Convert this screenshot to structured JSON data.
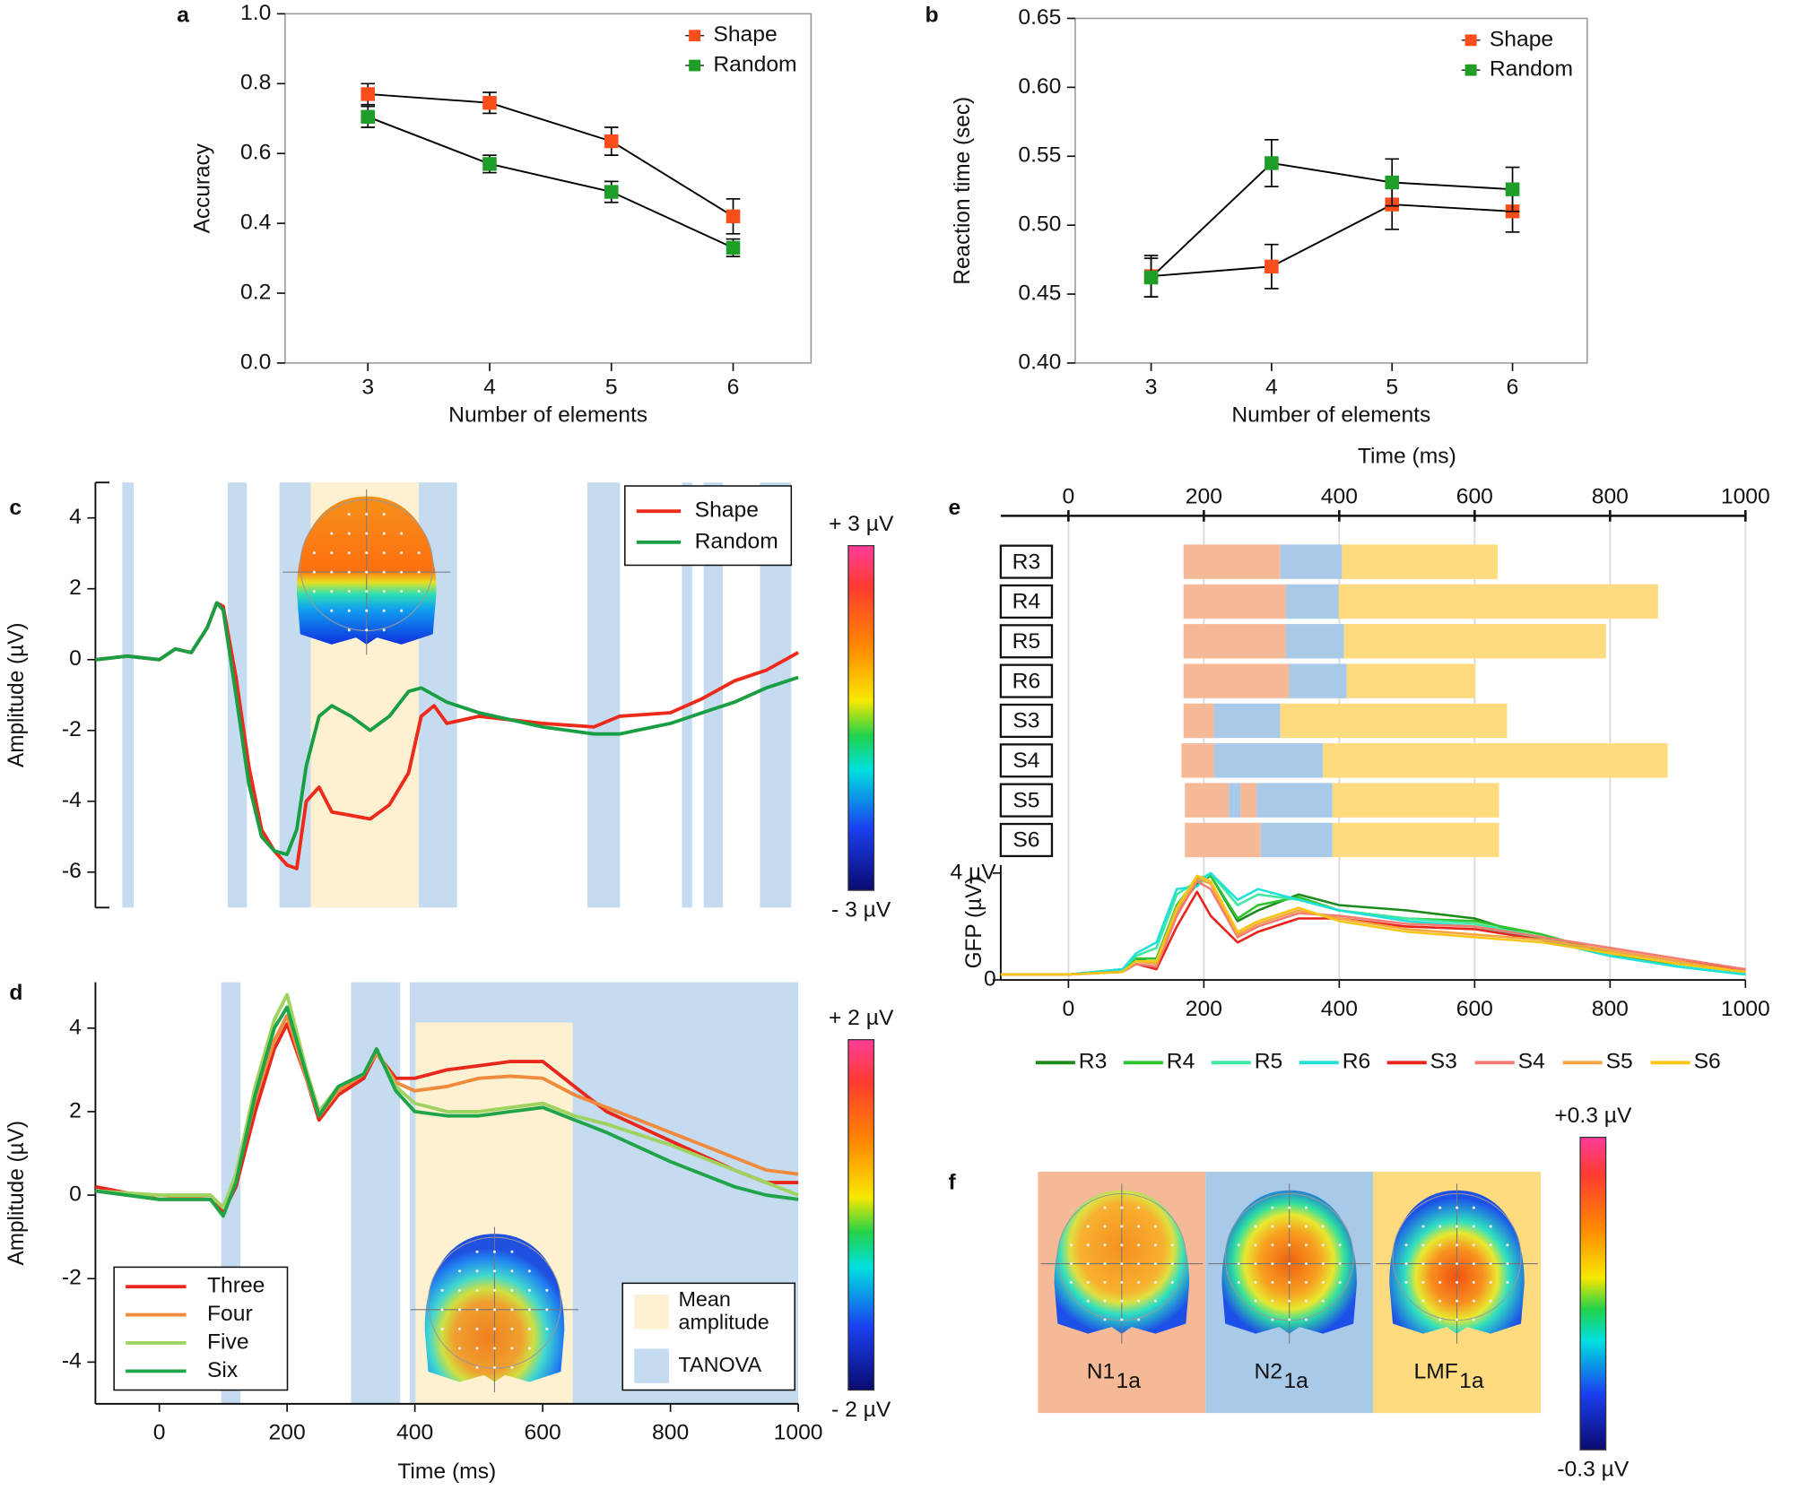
{
  "chart_data": [
    {
      "panel": "a",
      "type": "line",
      "frame": true,
      "markers": true,
      "legend": "upper right",
      "line_color": "#000000",
      "x_label": "Number of elements",
      "y_label": "Accuracy",
      "x": [
        3,
        4,
        5,
        6
      ],
      "xlim": [
        2.32,
        6.64
      ],
      "xticks": [
        3,
        4,
        5,
        6
      ],
      "ylim": [
        0,
        1
      ],
      "yticks": [
        {
          "value": 0,
          "label": "0.0"
        },
        0.2,
        0.4,
        0.6,
        0.8,
        {
          "value": 1,
          "label": "1.0"
        }
      ],
      "series": [
        {
          "name": "Shape",
          "color": "#f94d1c",
          "values": [
            0.77,
            0.745,
            0.635,
            0.42
          ],
          "errors": [
            0.03,
            0.03,
            0.04,
            0.05
          ]
        },
        {
          "name": "Random",
          "color": "#1e9e28",
          "values": [
            0.705,
            0.57,
            0.49,
            0.33
          ],
          "errors": [
            0.03,
            0.025,
            0.03,
            0.025
          ]
        }
      ]
    },
    {
      "panel": "b",
      "type": "line",
      "frame": true,
      "markers": true,
      "legend": "upper right",
      "line_color": "#000000",
      "x_label": "Number of elements",
      "y_label": "Reaction time (sec)",
      "x": [
        3,
        4,
        5,
        6
      ],
      "xlim": [
        2.37,
        6.62
      ],
      "xticks": [
        3,
        4,
        5,
        6
      ],
      "ylim": [
        0.4,
        0.65
      ],
      "yticks": [
        {
          "value": 0.4,
          "label": "0.40"
        },
        0.45,
        {
          "value": 0.5,
          "label": "0.50"
        },
        0.55,
        {
          "value": 0.6,
          "label": "0.60"
        },
        0.65
      ],
      "series": [
        {
          "name": "Shape",
          "color": "#f94d1c",
          "values": [
            0.463,
            0.47,
            0.515,
            0.51
          ],
          "errors": [
            0.015,
            0.016,
            0.018,
            0.015
          ]
        },
        {
          "name": "Random",
          "color": "#1e9e28",
          "values": [
            0.462,
            0.545,
            0.531,
            0.526
          ],
          "errors": [
            0.014,
            0.017,
            0.017,
            0.016
          ]
        }
      ]
    },
    {
      "panel": "c",
      "type": "line",
      "legend": "upper right",
      "y_label": "Amplitude (µV)",
      "xlim": [
        -100,
        1000
      ],
      "ylim": [
        -7,
        5
      ],
      "yticks": [
        -6,
        -4,
        -2,
        0,
        2,
        4
      ],
      "tanova_color": "#c5dcf0",
      "mean_color": "#fdf1d2",
      "tanova": [
        [
          -58,
          -40
        ],
        [
          107,
          137
        ],
        [
          188,
          466
        ],
        [
          670,
          721
        ],
        [
          818,
          834
        ],
        [
          852,
          882
        ],
        [
          940,
          989
        ]
      ],
      "mean_amplitude": [
        237,
        406
      ],
      "colorbar": [
        "+ 3 µV",
        "- 3 µV"
      ],
      "x": [
        -100,
        -50,
        0,
        25,
        50,
        75,
        90,
        100,
        120,
        140,
        160,
        180,
        200,
        215,
        230,
        250,
        270,
        300,
        330,
        360,
        390,
        410,
        430,
        450,
        500,
        600,
        680,
        720,
        800,
        850,
        900,
        950,
        1000
      ],
      "series": [
        {
          "name": "Shape",
          "color": "#ee2a1a",
          "values": [
            0,
            0.1,
            0,
            0.3,
            0.2,
            0.9,
            1.6,
            1.5,
            -0.5,
            -3,
            -4.8,
            -5.4,
            -5.8,
            -5.9,
            -4,
            -3.6,
            -4.3,
            -4.4,
            -4.5,
            -4.1,
            -3.2,
            -1.6,
            -1.3,
            -1.8,
            -1.6,
            -1.8,
            -1.9,
            -1.6,
            -1.5,
            -1.1,
            -0.6,
            -0.3,
            0.2
          ]
        },
        {
          "name": "Random",
          "color": "#1a9e44",
          "values": [
            0,
            0.1,
            0,
            0.3,
            0.2,
            0.9,
            1.6,
            1.4,
            -1,
            -3.5,
            -5,
            -5.4,
            -5.5,
            -4.8,
            -3,
            -1.6,
            -1.3,
            -1.6,
            -2.0,
            -1.6,
            -0.9,
            -0.8,
            -1.0,
            -1.2,
            -1.5,
            -1.9,
            -2.1,
            -2.1,
            -1.8,
            -1.5,
            -1.2,
            -0.8,
            -0.5
          ]
        }
      ]
    },
    {
      "panel": "d",
      "type": "line",
      "legend": "lower left",
      "y_label": "Amplitude (µV)",
      "x_label": "Time (ms)",
      "xlim": [
        -100,
        1000
      ],
      "xticks": [
        0,
        200,
        400,
        600,
        800,
        1000
      ],
      "ylim": [
        -5,
        5.1
      ],
      "yticks": [
        -4,
        -2,
        0,
        2,
        4
      ],
      "tanova_color": "#c5dcf0",
      "mean_color": "#fdf1d2",
      "tanova": [
        [
          97,
          127
        ],
        [
          300,
          377
        ],
        [
          392,
          1000
        ]
      ],
      "mean_amplitude": [
        401,
        647
      ],
      "shading_legend": [
        "Mean amplitude",
        "TANOVA"
      ],
      "colorbar": [
        "+ 2 µV",
        "- 2 µV"
      ],
      "x": [
        -100,
        0,
        80,
        100,
        120,
        150,
        180,
        200,
        230,
        250,
        280,
        320,
        340,
        370,
        400,
        450,
        500,
        550,
        600,
        650,
        700,
        800,
        900,
        950,
        1000
      ],
      "series": [
        {
          "name": "Three",
          "color": "#e8281c",
          "values": [
            0.2,
            -0.1,
            -0.1,
            -0.4,
            0.2,
            2,
            3.5,
            4.1,
            2.8,
            1.8,
            2.4,
            2.8,
            3.4,
            2.8,
            2.8,
            3.0,
            3.1,
            3.2,
            3.2,
            2.6,
            2.0,
            1.3,
            0.6,
            0.3,
            0.3
          ]
        },
        {
          "name": "Four",
          "color": "#f08a3c",
          "values": [
            0.1,
            -0.1,
            0,
            -0.3,
            0.4,
            2.3,
            3.7,
            4.3,
            2.8,
            1.9,
            2.5,
            2.9,
            3.4,
            2.7,
            2.5,
            2.6,
            2.8,
            2.85,
            2.8,
            2.4,
            2.1,
            1.5,
            0.9,
            0.6,
            0.5
          ]
        },
        {
          "name": "Five",
          "color": "#9fd35f",
          "values": [
            0.1,
            0,
            0,
            -0.3,
            0.5,
            2.6,
            4.2,
            4.8,
            3.0,
            2.0,
            2.6,
            2.9,
            3.5,
            2.6,
            2.2,
            2.0,
            2.0,
            2.1,
            2.2,
            1.9,
            1.7,
            1.2,
            0.6,
            0.3,
            0.0
          ]
        },
        {
          "name": "Six",
          "color": "#1fa44a",
          "values": [
            0.1,
            -0.1,
            -0.1,
            -0.5,
            0.3,
            2.4,
            4.0,
            4.5,
            2.9,
            1.9,
            2.6,
            2.9,
            3.5,
            2.5,
            2.0,
            1.9,
            1.9,
            2.0,
            2.1,
            1.8,
            1.5,
            0.8,
            0.2,
            0.0,
            -0.1
          ]
        }
      ]
    },
    {
      "panel": "e",
      "type": "timeline",
      "x_label": "Time (ms)",
      "xlim": [
        -100,
        1000
      ],
      "xticks": [
        0,
        200,
        400,
        600,
        800,
        1000
      ],
      "state_colors": [
        "#f5b998",
        "#a9c9e8",
        "#fddb7e"
      ],
      "categories": [
        "R3",
        "R4",
        "R5",
        "R6",
        "S3",
        "S4",
        "S5",
        "S6"
      ],
      "segments": [
        [
          {
            "state": 0,
            "start": 170,
            "end": 313
          },
          {
            "state": 1,
            "start": 313,
            "end": 404
          },
          {
            "state": 2,
            "start": 404,
            "end": 634
          }
        ],
        [
          {
            "state": 0,
            "start": 170,
            "end": 321
          },
          {
            "state": 1,
            "start": 321,
            "end": 399
          },
          {
            "state": 2,
            "start": 399,
            "end": 871
          }
        ],
        [
          {
            "state": 0,
            "start": 170,
            "end": 321
          },
          {
            "state": 1,
            "start": 321,
            "end": 407
          },
          {
            "state": 2,
            "start": 407,
            "end": 794
          }
        ],
        [
          {
            "state": 0,
            "start": 170,
            "end": 326
          },
          {
            "state": 1,
            "start": 326,
            "end": 411
          },
          {
            "state": 2,
            "start": 411,
            "end": 601
          }
        ],
        [
          {
            "state": 0,
            "start": 170,
            "end": 215
          },
          {
            "state": 1,
            "start": 215,
            "end": 313
          },
          {
            "state": 2,
            "start": 313,
            "end": 648
          }
        ],
        [
          {
            "state": 0,
            "start": 167,
            "end": 215
          },
          {
            "state": 1,
            "start": 215,
            "end": 376
          },
          {
            "state": 2,
            "start": 376,
            "end": 885
          }
        ],
        [
          {
            "state": 0,
            "start": 172,
            "end": 237
          },
          {
            "state": 1,
            "start": 237,
            "end": 254
          },
          {
            "state": 0,
            "start": 254,
            "end": 278
          },
          {
            "state": 1,
            "start": 278,
            "end": 390
          },
          {
            "state": 2,
            "start": 390,
            "end": 636
          }
        ],
        [
          {
            "state": 0,
            "start": 172,
            "end": 284
          },
          {
            "state": 1,
            "start": 284,
            "end": 390
          },
          {
            "state": 2,
            "start": 390,
            "end": 636
          }
        ]
      ]
    },
    {
      "type": "line",
      "legend": "bottom",
      "y_label": "GFP (µV)",
      "xlim": [
        -100,
        1000
      ],
      "xticks": [
        0,
        200,
        400,
        600,
        800,
        1000
      ],
      "ylim": [
        0,
        4.3
      ],
      "yticks": [
        0,
        {
          "value": 4,
          "label": "4 µV"
        }
      ],
      "x": [
        -100,
        0,
        80,
        100,
        130,
        160,
        190,
        210,
        250,
        280,
        340,
        400,
        500,
        600,
        700,
        800,
        900,
        1000
      ],
      "series": [
        {
          "name": "R3",
          "color": "#1b8a1b",
          "values": [
            0.2,
            0.2,
            0.4,
            0.8,
            0.6,
            2.6,
            3.6,
            3.9,
            2.2,
            2.6,
            3.2,
            2.8,
            2.6,
            2.3,
            1.5,
            0.9,
            0.6,
            0.3
          ]
        },
        {
          "name": "R4",
          "color": "#2fc42f",
          "values": [
            0.2,
            0.2,
            0.4,
            0.8,
            0.8,
            2.8,
            3.8,
            3.9,
            2.3,
            2.8,
            3.1,
            2.6,
            2.3,
            2.2,
            1.7,
            1.0,
            0.6,
            0.3
          ]
        },
        {
          "name": "R5",
          "color": "#3de8a0",
          "values": [
            0.2,
            0.2,
            0.4,
            0.9,
            1.2,
            3.2,
            3.7,
            4.0,
            2.8,
            3.2,
            3.0,
            2.6,
            2.3,
            2.1,
            1.6,
            0.9,
            0.5,
            0.2
          ]
        },
        {
          "name": "R6",
          "color": "#22e0d8",
          "values": [
            0.2,
            0.2,
            0.4,
            1.0,
            1.4,
            3.4,
            3.5,
            4.0,
            3.0,
            3.4,
            3.0,
            2.6,
            2.2,
            2.0,
            1.5,
            0.9,
            0.5,
            0.2
          ]
        },
        {
          "name": "S3",
          "color": "#e8231c",
          "values": [
            0.2,
            0.2,
            0.3,
            0.6,
            0.4,
            2.0,
            3.3,
            2.4,
            1.4,
            1.8,
            2.3,
            2.3,
            2.0,
            1.9,
            1.5,
            1.1,
            0.7,
            0.4
          ]
        },
        {
          "name": "S4",
          "color": "#f47b6f",
          "values": [
            0.2,
            0.2,
            0.3,
            0.6,
            0.5,
            2.4,
            3.7,
            3.4,
            1.6,
            2.0,
            2.5,
            2.4,
            2.1,
            2.0,
            1.6,
            1.2,
            0.8,
            0.4
          ]
        },
        {
          "name": "S5",
          "color": "#f7a340",
          "values": [
            0.2,
            0.2,
            0.3,
            0.7,
            0.6,
            2.6,
            3.8,
            3.6,
            1.7,
            2.1,
            2.6,
            2.3,
            1.9,
            1.7,
            1.5,
            1.1,
            0.7,
            0.3
          ]
        },
        {
          "name": "S6",
          "color": "#f7c518",
          "values": [
            0.2,
            0.2,
            0.3,
            0.7,
            0.7,
            2.7,
            3.9,
            3.7,
            1.8,
            2.2,
            2.7,
            2.2,
            1.8,
            1.6,
            1.4,
            1.0,
            0.6,
            0.3
          ]
        }
      ]
    },
    {
      "panel": "f",
      "type": "topomap",
      "colorbar": [
        "+0.3 µV",
        "-0.3 µV"
      ],
      "maps": [
        {
          "name": "N1",
          "sub": "1a",
          "color": "#f5b998"
        },
        {
          "name": "N2",
          "sub": "1a",
          "color": "#a9c9e8"
        },
        {
          "name": "LMF",
          "sub": "1a",
          "color": "#fddb7e"
        }
      ]
    }
  ]
}
